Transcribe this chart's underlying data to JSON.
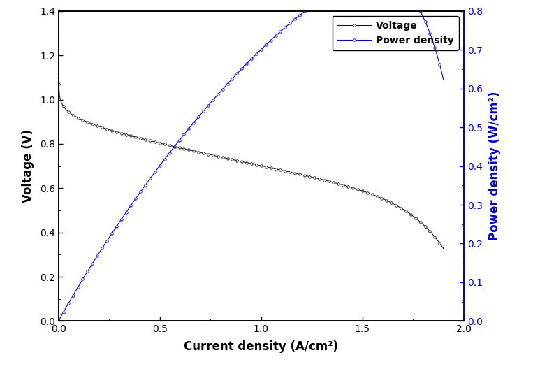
{
  "title": "",
  "xlabel": "Current density (A/cm²)",
  "ylabel_left": "Voltage (V)",
  "ylabel_right": "Power density (W/cm²)",
  "xlim": [
    0.0,
    2.0
  ],
  "ylim_left": [
    0.0,
    1.4
  ],
  "ylim_right": [
    0.0,
    0.8
  ],
  "xticks": [
    0.0,
    0.5,
    1.0,
    1.5,
    2.0
  ],
  "yticks_left": [
    0.0,
    0.2,
    0.4,
    0.6,
    0.8,
    1.0,
    1.2,
    1.4
  ],
  "yticks_right": [
    0.0,
    0.1,
    0.2,
    0.3,
    0.4,
    0.5,
    0.6,
    0.7,
    0.8
  ],
  "voltage_color": "#1a1a1a",
  "power_color": "#0000cc",
  "legend_voltage": "Voltage",
  "legend_power": "Power density",
  "marker": "o",
  "markersize": 2.5,
  "linewidth": 0.8,
  "background_color": "white",
  "spine_color": "black",
  "right_spine_color": "#0000cc",
  "n_points": 400
}
